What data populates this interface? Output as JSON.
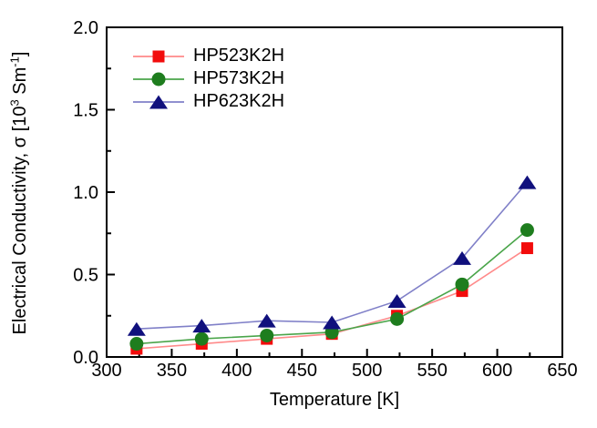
{
  "figure": {
    "background": "#ffffff",
    "frame_color": "#000000",
    "text_color": "#000000"
  },
  "chart_data": {
    "type": "line",
    "title": "",
    "xlabel": "Temperature [K]",
    "ylabel": "Electrical Conductivity, σ [10³ Sm⁻¹]",
    "ylabel_rich": [
      {
        "t": "Electrical Conductivity, σ [10"
      },
      {
        "t": "3",
        "sup": true
      },
      {
        "t": " Sm"
      },
      {
        "t": "-1",
        "sup": true
      },
      {
        "t": "]"
      }
    ],
    "xlim": [
      300,
      650
    ],
    "ylim": [
      0.0,
      2.0
    ],
    "x_major_ticks": [
      300,
      350,
      400,
      450,
      500,
      550,
      600,
      650
    ],
    "x_tick_labels": [
      "300",
      "350",
      "400",
      "450",
      "500",
      "550",
      "600",
      "650"
    ],
    "x_minor_step": 25,
    "y_major_ticks": [
      0.0,
      0.5,
      1.0,
      1.5,
      2.0
    ],
    "y_tick_labels": [
      "0.0",
      "0.5",
      "1.0",
      "1.5",
      "2.0"
    ],
    "y_minor_step": 0.25,
    "grid": false,
    "legend_position": "top-left-inside",
    "x": [
      323,
      373,
      423,
      473,
      523,
      573,
      623
    ],
    "series": [
      {
        "name": "HP523K2H",
        "marker": "square",
        "marker_color": "#f20c0c",
        "line_color": "#ff8a8a",
        "values": [
          0.05,
          0.08,
          0.11,
          0.14,
          0.25,
          0.4,
          0.66
        ]
      },
      {
        "name": "HP573K2H",
        "marker": "circle",
        "marker_color": "#1e7d1e",
        "line_color": "#4aa54a",
        "values": [
          0.08,
          0.11,
          0.13,
          0.15,
          0.23,
          0.44,
          0.77
        ]
      },
      {
        "name": "HP623K2H",
        "marker": "triangle",
        "marker_color": "#10107d",
        "line_color": "#8080c8",
        "values": [
          0.17,
          0.19,
          0.22,
          0.21,
          0.34,
          0.6,
          1.06
        ]
      }
    ]
  }
}
